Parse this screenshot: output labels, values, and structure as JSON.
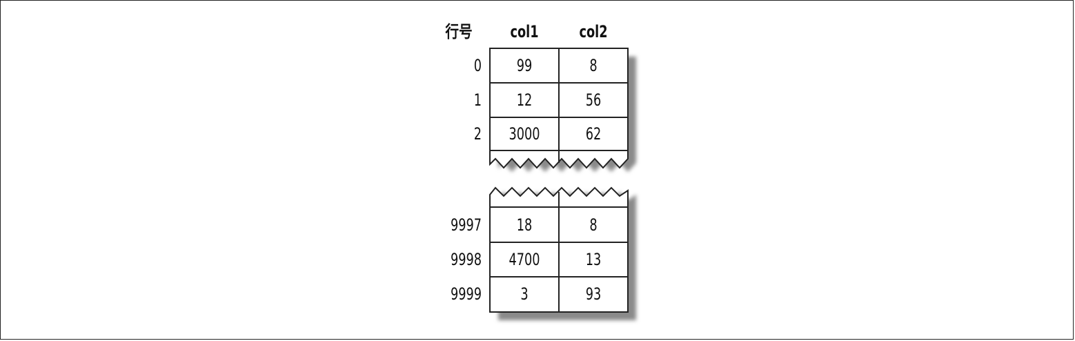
{
  "header": {
    "index_label": "行号",
    "columns": [
      "col1",
      "col2"
    ]
  },
  "rows_top": [
    {
      "index": "0",
      "col1": "99",
      "col2": "8"
    },
    {
      "index": "1",
      "col1": "12",
      "col2": "56"
    },
    {
      "index": "2",
      "col1": "3000",
      "col2": "62"
    }
  ],
  "rows_bottom": [
    {
      "index": "9997",
      "col1": "18",
      "col2": "8"
    },
    {
      "index": "9998",
      "col1": "4700",
      "col2": "13"
    },
    {
      "index": "9999",
      "col1": "3",
      "col2": "93"
    }
  ],
  "colors": {
    "border": "#222222",
    "shadow": "#8a8a8a",
    "background": "#ffffff"
  }
}
